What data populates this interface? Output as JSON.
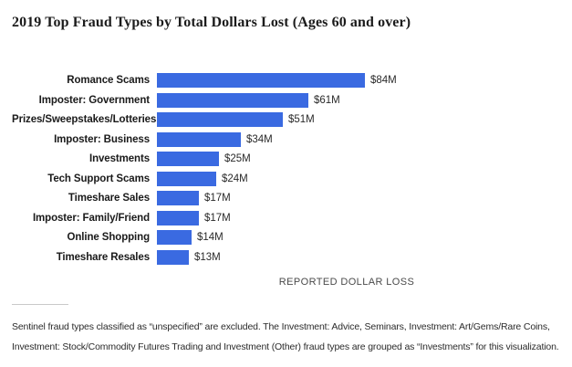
{
  "title": "2019 Top Fraud Types by Total Dollars Lost (Ages 60 and over)",
  "footnote": "Sentinel fraud types classified as “unspecified” are excluded. The Investment: Advice, Seminars, Investment: Art/Gems/Rare Coins, Investment: Stock/Commodity Futures Trading and Investment (Other) fraud types are grouped as “Investments” for this visualization.",
  "colors": {
    "bar": "#3a6ae1",
    "title_text": "#1b1b1b",
    "category_text": "#1a1a1a",
    "value_text": "#2a2a2a",
    "axis_text": "#4a4a4a",
    "divider": "#c9c9c9",
    "background": "#ffffff"
  },
  "chart_data": {
    "type": "bar",
    "orientation": "horizontal",
    "title": "2019 Top Fraud Types by Total Dollars Lost (Ages 60 and over)",
    "categories": [
      "Romance Scams",
      "Imposter: Government",
      "Prizes/Sweepstakes/Lotteries",
      "Imposter: Business",
      "Investments",
      "Tech Support Scams",
      "Timeshare Sales",
      "Imposter: Family/Friend",
      "Online Shopping",
      "Timeshare Resales"
    ],
    "values": [
      84,
      61,
      51,
      34,
      25,
      24,
      17,
      17,
      14,
      13
    ],
    "value_labels": [
      "$84M",
      "$61M",
      "$51M",
      "$34M",
      "$25M",
      "$24M",
      "$17M",
      "$17M",
      "$14M",
      "$13M"
    ],
    "unit": "millions USD",
    "xlabel": "REPORTED DOLLAR LOSS",
    "ylabel": "",
    "xlim": [
      0,
      84
    ],
    "grid": false,
    "legend": false,
    "bar_color": "#3a6ae1"
  }
}
